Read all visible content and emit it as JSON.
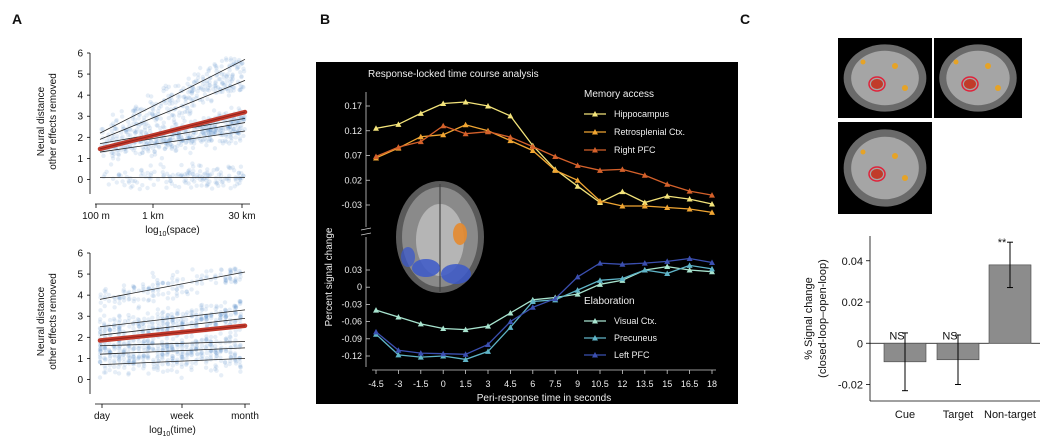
{
  "panels": {
    "a_label": "A",
    "b_label": "B",
    "c_label": "C"
  },
  "chart_data": [
    {
      "id": "A_space",
      "type": "scatter",
      "ylabel_line1": "Neural distance",
      "ylabel_line2": "other effects removed",
      "xlabel_prefix": "log",
      "xlabel_sub": "10",
      "xlabel_suffix": "(space)",
      "xticks": [
        "100 m",
        "1 km",
        "30 km"
      ],
      "yticks": [
        "0",
        "1",
        "2",
        "3",
        "4",
        "5",
        "6"
      ],
      "ylim": [
        -0.5,
        6
      ],
      "point_color": "#3b7bbf",
      "fit_color": "#c0392b",
      "fit_line": {
        "y_start": 1.45,
        "y_end": 3.2
      },
      "subject_lines": [
        {
          "y_start": 2.2,
          "y_end": 5.7
        },
        {
          "y_start": 1.9,
          "y_end": 4.7
        },
        {
          "y_start": 1.7,
          "y_end": 2.9
        },
        {
          "y_start": 1.5,
          "y_end": 2.7
        },
        {
          "y_start": 1.3,
          "y_end": 2.3
        },
        {
          "y_start": 0.1,
          "y_end": 0.1
        }
      ]
    },
    {
      "id": "A_time",
      "type": "scatter",
      "ylabel_line1": "Neural distance",
      "ylabel_line2": "other effects removed",
      "xlabel_prefix": "log",
      "xlabel_sub": "10",
      "xlabel_suffix": "(time)",
      "xticks": [
        "day",
        "week",
        "month"
      ],
      "yticks": [
        "0",
        "1",
        "2",
        "3",
        "4",
        "5",
        "6"
      ],
      "ylim": [
        -0.5,
        6
      ],
      "point_color": "#3b7bbf",
      "fit_color": "#c0392b",
      "fit_line": {
        "y_start": 1.85,
        "y_end": 2.55
      },
      "subject_lines": [
        {
          "y_start": 3.8,
          "y_end": 5.1
        },
        {
          "y_start": 2.5,
          "y_end": 3.3
        },
        {
          "y_start": 2.1,
          "y_end": 2.9
        },
        {
          "y_start": 1.6,
          "y_end": 1.8
        },
        {
          "y_start": 1.2,
          "y_end": 1.5
        },
        {
          "y_start": 0.7,
          "y_end": 1.0
        }
      ]
    },
    {
      "id": "B",
      "type": "line",
      "title": "Response-locked time course analysis",
      "xlabel": "Peri-response time in seconds",
      "ylabel": "Percent signal change",
      "x": [
        -4.5,
        -3,
        -1.5,
        0,
        1.5,
        3,
        4.5,
        6,
        7.5,
        9,
        10.5,
        12,
        13.5,
        15,
        16.5,
        18
      ],
      "xtick_labels": [
        "-4.5",
        "-3",
        "-1.5",
        "0",
        "1.5",
        "3",
        "4.5",
        "6",
        "7.5",
        "9",
        "10.5",
        "12",
        "13.5",
        "15",
        "16.5",
        "18"
      ],
      "upper_group": {
        "heading": "Memory access",
        "yticks": [
          "0.17",
          "0.12",
          "0.07",
          "0.02",
          "-0.03"
        ],
        "ylim": [
          -0.05,
          0.2
        ],
        "series": [
          {
            "name": "Hippocampus",
            "color": "#f3e37a",
            "values": [
              0.125,
              0.133,
              0.155,
              0.175,
              0.178,
              0.17,
              0.15,
              0.09,
              0.042,
              0.008,
              -0.025,
              -0.003,
              -0.025,
              -0.012,
              -0.018,
              -0.028
            ]
          },
          {
            "name": "Retrosplenial Ctx.",
            "color": "#f0a532",
            "values": [
              0.065,
              0.085,
              0.108,
              0.112,
              0.132,
              0.12,
              0.1,
              0.08,
              0.04,
              0.02,
              -0.022,
              -0.032,
              -0.032,
              -0.035,
              -0.038,
              -0.045
            ]
          },
          {
            "name": "Right PFC",
            "color": "#d4602a",
            "values": [
              0.068,
              0.087,
              0.098,
              0.13,
              0.114,
              0.118,
              0.107,
              0.088,
              0.068,
              0.05,
              0.04,
              0.042,
              0.03,
              0.012,
              -0.002,
              -0.01
            ]
          }
        ]
      },
      "lower_group": {
        "heading": "Elaboration",
        "yticks": [
          "0.03",
          "0",
          "-0.03",
          "-0.06",
          "-0.09",
          "-0.12"
        ],
        "ylim": [
          -0.14,
          0.05
        ],
        "series": [
          {
            "name": "Visual Ctx.",
            "color": "#a8e4cf",
            "values": [
              -0.04,
              -0.052,
              -0.064,
              -0.072,
              -0.074,
              -0.068,
              -0.045,
              -0.022,
              -0.018,
              -0.012,
              0.005,
              0.012,
              0.03,
              0.036,
              0.03,
              0.027
            ]
          },
          {
            "name": "Precuneus",
            "color": "#5fb4c7",
            "values": [
              -0.082,
              -0.118,
              -0.122,
              -0.12,
              -0.126,
              -0.112,
              -0.07,
              -0.025,
              -0.022,
              -0.005,
              0.012,
              0.015,
              0.03,
              0.024,
              0.038,
              0.032
            ]
          },
          {
            "name": "Left PFC",
            "color": "#3b4fb0",
            "values": [
              -0.078,
              -0.11,
              -0.115,
              -0.116,
              -0.117,
              -0.1,
              -0.06,
              -0.035,
              -0.02,
              0.018,
              0.042,
              0.04,
              0.042,
              0.045,
              0.05,
              0.043
            ]
          }
        ]
      }
    },
    {
      "id": "C",
      "type": "bar",
      "ylabel_line1": "% Signal change",
      "ylabel_line2": "(closed-loop–open-loop)",
      "categories": [
        "Cue",
        "Target",
        "Non-target"
      ],
      "values": [
        -0.009,
        -0.008,
        0.038
      ],
      "errors": [
        0.014,
        0.012,
        0.011
      ],
      "annotations": [
        "NS",
        "NS",
        "**"
      ],
      "yticks": [
        "0.04",
        "0.02",
        "0",
        "-0.02"
      ],
      "ylim": [
        -0.028,
        0.052
      ],
      "bar_color": "#8c8c8c"
    }
  ]
}
